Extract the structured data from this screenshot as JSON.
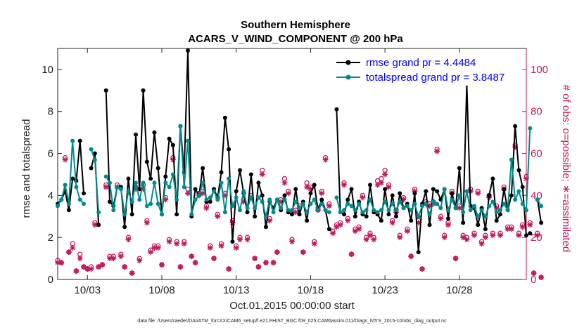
{
  "chart_data": {
    "type": "line",
    "title": "Southern Hemisphere",
    "subtitle": "ACARS_V_WIND_COMPONENT @ 200 hPa",
    "xlabel": "Oct.01,2015 00:00:00 start",
    "ylabel_left": "rmse and totalspread",
    "ylabel_right": "# of obs: o=possible; ∗=assimilated",
    "footnote": "data file: /Users/raeder/DAI/ATM_forcXX/CAM6_setup/f.e21.FHIST_BGC.f09_025.CAM6assim.011/Diags_NTrS_2015-10/obs_diag_output.nc",
    "xlim": [
      0,
      31.5
    ],
    "ylim_left": [
      0,
      11
    ],
    "ylim_right": [
      0,
      110
    ],
    "x_tick_values": [
      2,
      7,
      12,
      17,
      22,
      27
    ],
    "x_tick_labels": [
      "10/03",
      "10/08",
      "10/13",
      "10/18",
      "10/23",
      "10/28"
    ],
    "y_left_ticks": [
      0,
      2,
      4,
      6,
      8,
      10
    ],
    "y_right_ticks": [
      0,
      20,
      40,
      60,
      80,
      100
    ],
    "x_step": 0.25,
    "x_start": 0.0,
    "legend": {
      "placement": "top-right"
    },
    "series": [
      {
        "name": "rmse",
        "legend_label": "rmse grand pr = 4.4484",
        "color": "#000000",
        "marker": "dot",
        "values": [
          3.6,
          3.8,
          4.2,
          3.3,
          4.8,
          4.7,
          6.6,
          4.1,
          null,
          5.3,
          6.0,
          2.6,
          null,
          9.0,
          3.7,
          3.5,
          4.4,
          4.4,
          2.5,
          4.8,
          3.1,
          6.9,
          4.3,
          9.0,
          5.6,
          4.8,
          7.0,
          5.3,
          3.1,
          4.9,
          6.7,
          6.4,
          3.1,
          7.3,
          5.1,
          10.9,
          3.0,
          4.3,
          4.0,
          5.3,
          3.7,
          3.7,
          4.3,
          3.9,
          5.1,
          7.7,
          6.2,
          1.8,
          4.2,
          5.2,
          4.1,
          3.2,
          5.0,
          3.0,
          4.6,
          4.0,
          2.5,
          3.7,
          3.4,
          3.8,
          3.3,
          4.0,
          3.2,
          3.1,
          4.3,
          3.1,
          3.7,
          2.8,
          4.1,
          4.5,
          3.3,
          3.8,
          3.3,
          2.4,
          null,
          8.1,
          3.2,
          3.1,
          3.8,
          4.3,
          3.0,
          3.7,
          3.1,
          3.0,
          4.5,
          3.2,
          3.1,
          2.8,
          4.3,
          3.1,
          4.0,
          3.0,
          4.1,
          3.4,
          3.6,
          2.8,
          4.1,
          1.3,
          3.6,
          4.2,
          2.6,
          4.3,
          4.2,
          3.8,
          4.3,
          2.9,
          4.1,
          3.4,
          5.3,
          2.7,
          9.3,
          3.5,
          3.4,
          2.6,
          3.4,
          2.4,
          4.0,
          4.8,
          2.8,
          3.1,
          4.3,
          3.3,
          4.0,
          7.3,
          5.2,
          4.4,
          2.1,
          2.2,
          null,
          3.8,
          2.7
        ],
        "x_values_start": 0.0
      },
      {
        "name": "totalspread",
        "legend_label": "totalspread grand pr = 3.8487",
        "color": "#008b8b",
        "marker": "dot",
        "values": [
          3.5,
          3.8,
          4.5,
          3.6,
          6.6,
          4.4,
          3.8,
          3.6,
          null,
          6.2,
          5.7,
          3.2,
          null,
          4.9,
          4.6,
          3.3,
          4.4,
          4.3,
          3.1,
          4.2,
          3.7,
          4.6,
          3.8,
          4.6,
          3.5,
          3.6,
          4.6,
          3.6,
          3.1,
          4.6,
          4.4,
          5.0,
          3.8,
          7.3,
          4.4,
          6.6,
          3.1,
          3.8,
          4.0,
          4.6,
          3.8,
          3.9,
          4.2,
          3.8,
          4.6,
          3.2,
          4.8,
          3.5,
          3.9,
          3.3,
          4.2,
          3.4,
          3.9,
          3.4,
          3.9,
          3.7,
          3.0,
          3.8,
          3.2,
          3.8,
          3.4,
          3.8,
          3.3,
          3.3,
          3.7,
          3.4,
          3.6,
          3.2,
          3.6,
          3.8,
          3.3,
          3.6,
          3.3,
          3.2,
          null,
          3.9,
          3.2,
          3.3,
          3.6,
          3.5,
          3.3,
          3.6,
          3.2,
          3.3,
          3.8,
          3.3,
          3.2,
          3.3,
          3.7,
          3.3,
          3.6,
          3.3,
          3.7,
          3.4,
          3.5,
          3.3,
          3.6,
          3.0,
          3.5,
          3.6,
          3.1,
          3.7,
          3.6,
          3.4,
          4.3,
          3.3,
          3.8,
          3.4,
          4.0,
          3.2,
          4.2,
          3.3,
          3.5,
          3.0,
          3.3,
          3.0,
          3.5,
          3.7,
          3.2,
          3.3,
          3.6,
          3.3,
          5.7,
          3.8,
          4.2,
          3.6,
          3.3,
          7.2,
          null,
          3.8,
          3.5
        ],
        "x_values_start": 0.0
      },
      {
        "name": "obs_possible",
        "legend_label": "o=possible",
        "color": "#c2185b",
        "marker": "circle",
        "axis": "right",
        "values": [
          9,
          8,
          58,
          13,
          17,
          4,
          12,
          6,
          5,
          6,
          27,
          6,
          7,
          45,
          11,
          11,
          45,
          12,
          6,
          20,
          3,
          44,
          10,
          45,
          28,
          14,
          16,
          16,
          7,
          39,
          19,
          58,
          18,
          6,
          18,
          43,
          11,
          8,
          41,
          42,
          35,
          16,
          10,
          31,
          17,
          41,
          5,
          28,
          16,
          20,
          38,
          20,
          40,
          10,
          6,
          52,
          8,
          29,
          8,
          13,
          38,
          48,
          42,
          19,
          33,
          35,
          13,
          46,
          44,
          18,
          34,
          42,
          58,
          36,
          23,
          26,
          27,
          46,
          29,
          12,
          24,
          25,
          40,
          20,
          22,
          20,
          47,
          48,
          52,
          45,
          28,
          33,
          21,
          39,
          24,
          11,
          43,
          28,
          5,
          37,
          36,
          37,
          62,
          30,
          21,
          27,
          42,
          10,
          35,
          21,
          20,
          43,
          22,
          42,
          18,
          21,
          40,
          22,
          35,
          22,
          44,
          25,
          25,
          64,
          22,
          26,
          49,
          27,
          3,
          22,
          1
        ]
      },
      {
        "name": "obs_assimilated",
        "legend_label": "∗=assimilated",
        "color": "#c2185b",
        "marker": "star",
        "axis": "right",
        "values": [
          8,
          8,
          57,
          13,
          15,
          4,
          10,
          6,
          5,
          5,
          26,
          6,
          7,
          44,
          10,
          10,
          44,
          11,
          6,
          19,
          3,
          43,
          9,
          43,
          27,
          13,
          15,
          15,
          7,
          38,
          18,
          57,
          17,
          6,
          17,
          41,
          11,
          8,
          40,
          41,
          34,
          15,
          10,
          30,
          16,
          40,
          5,
          27,
          15,
          19,
          37,
          19,
          39,
          10,
          6,
          50,
          8,
          28,
          8,
          13,
          37,
          46,
          41,
          18,
          32,
          34,
          13,
          44,
          43,
          17,
          33,
          41,
          57,
          35,
          22,
          25,
          26,
          45,
          28,
          12,
          23,
          24,
          39,
          19,
          21,
          19,
          45,
          46,
          50,
          44,
          27,
          32,
          20,
          38,
          23,
          11,
          42,
          27,
          5,
          36,
          35,
          36,
          61,
          29,
          20,
          26,
          41,
          10,
          34,
          20,
          19,
          42,
          21,
          41,
          17,
          20,
          39,
          21,
          34,
          21,
          43,
          24,
          24,
          63,
          21,
          25,
          48,
          26,
          3,
          21,
          1
        ]
      }
    ]
  },
  "style": {
    "obs_color": "#c2185b",
    "legend_text_color": "#0000ff",
    "rmse_color": "#000000",
    "spread_color": "#008b8b"
  }
}
